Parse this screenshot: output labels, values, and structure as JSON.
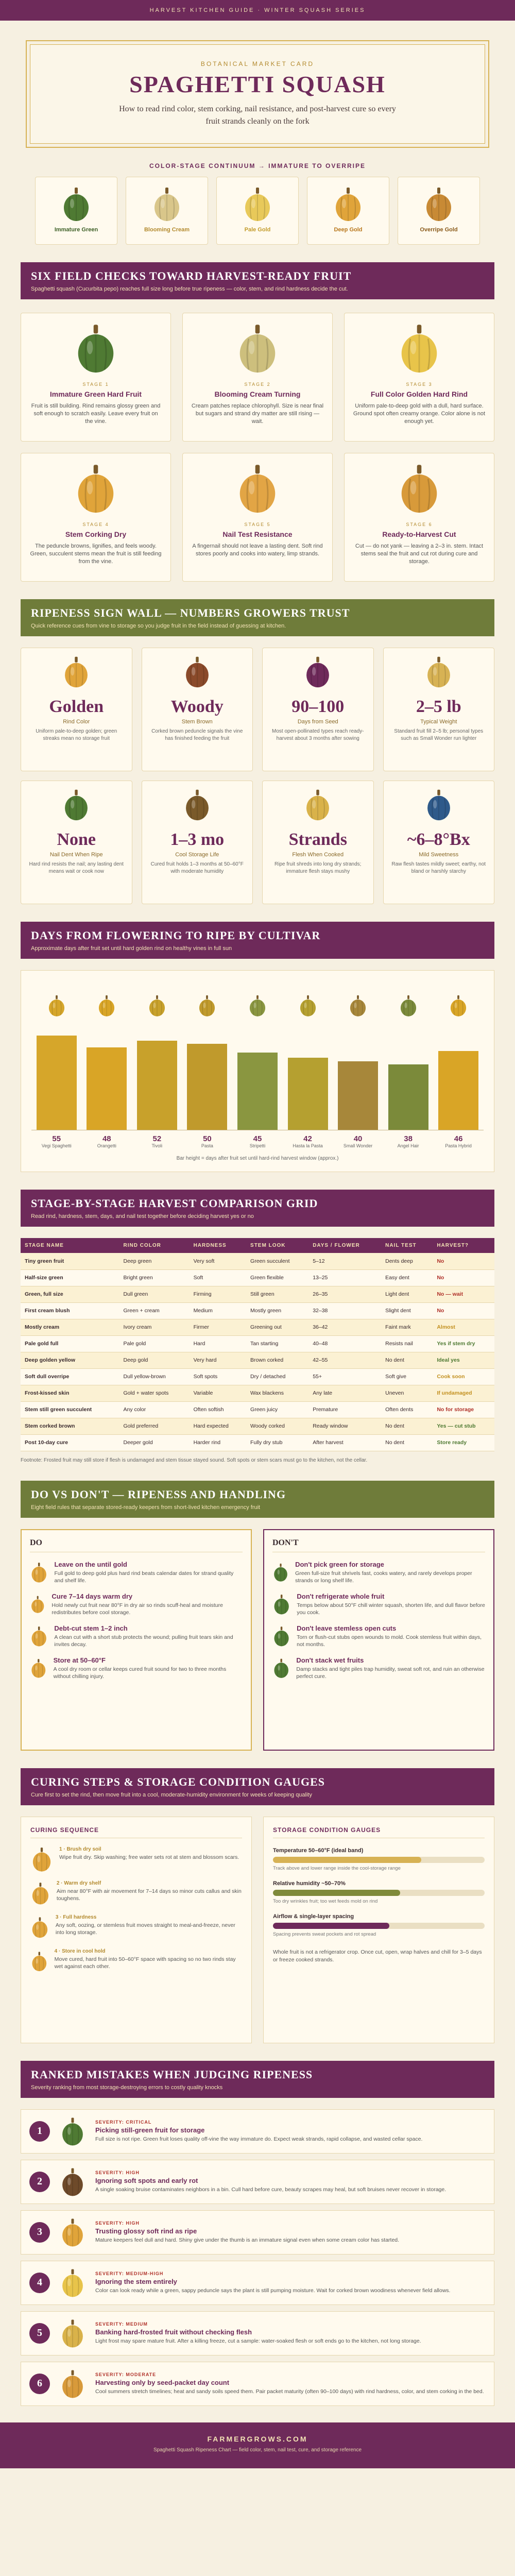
{
  "topbar": "HARVEST KITCHEN GUIDE · WINTER SQUASH SERIES",
  "hero": {
    "kicker": "BOTANICAL MARKET CARD",
    "title": "SPAGHETTI SQUASH",
    "subtitle": "How to read rind color, stem corking, nail resistance, and post-harvest cure so every fruit strands cleanly on the fork"
  },
  "continuum": {
    "title": "COLOR-STAGE CONTINUUM → IMMATURE TO OVERRIPE",
    "items": [
      {
        "label": "Immature Green",
        "color": "#4f7a33",
        "label_color": "#3d5f26"
      },
      {
        "label": "Blooming Cream",
        "color": "#d9c68a",
        "label_color": "#b38a2e"
      },
      {
        "label": "Pale Gold",
        "color": "#e8c95a",
        "label_color": "#c39b2a"
      },
      {
        "label": "Deep Gold",
        "color": "#e0a43a",
        "label_color": "#b8761b"
      },
      {
        "label": "Overripe Gold",
        "color": "#c88a35",
        "label_color": "#8a5a1a"
      }
    ]
  },
  "checks": {
    "title": "SIX FIELD CHECKS TOWARD HARVEST-READY FRUIT",
    "subtitle": "Spaghetti squash (Cucurbita pepo) reaches full size long before true ripeness — color, stem, and rind hardness decide the cut.",
    "items": [
      {
        "stage": "STAGE 1",
        "title": "Immature Green Hard Fruit",
        "desc": "Fruit is still building. Rind remains glossy green and soft enough to scratch easily. Leave every fruit on the vine.",
        "color": "#4f7a33"
      },
      {
        "stage": "STAGE 2",
        "title": "Blooming Cream Turning",
        "desc": "Cream patches replace chlorophyll. Size is near final but sugars and strand dry matter are still rising — wait.",
        "color": "#cdbf7d"
      },
      {
        "stage": "STAGE 3",
        "title": "Full Color Golden Hard Rind",
        "desc": "Uniform pale-to-deep gold with a dull, hard surface. Ground spot often creamy orange. Color alone is not enough yet.",
        "color": "#e8c44a"
      },
      {
        "stage": "STAGE 4",
        "title": "Stem Corking Dry",
        "desc": "The peduncle browns, lignifies, and feels woody. Green, succulent stems mean the fruit is still feeding from the vine.",
        "color": "#e0a43a"
      },
      {
        "stage": "STAGE 5",
        "title": "Nail Test Resistance",
        "desc": "A fingernail should not leave a lasting dent. Soft rind stores poorly and cooks into watery, limp strands.",
        "color": "#e2a545"
      },
      {
        "stage": "STAGE 6",
        "title": "Ready-to-Harvest Cut",
        "desc": "Cut — do not yank — leaving a 2–3 in. stem. Intact stems seal the fruit and cut rot during cure and storage.",
        "color": "#d89a3a"
      }
    ]
  },
  "signs": {
    "title": "RIPENESS SIGN WALL — NUMBERS GROWERS TRUST",
    "subtitle": "Quick reference cues from vine to storage so you judge fruit in the field instead of guessing at kitchen.",
    "items": [
      {
        "big": "Golden",
        "cap": "Rind Color",
        "desc": "Uniform pale-to-deep golden; green streaks mean no storage fruit"
      },
      {
        "big": "Woody",
        "cap": "Stem Brown",
        "desc": "Corked brown peduncle signals the vine has finished feeding the fruit"
      },
      {
        "big": "90–100",
        "cap": "Days from Seed",
        "desc": "Most open-pollinated types reach ready-harvest about 3 months after sowing"
      },
      {
        "big": "2–5 lb",
        "cap": "Typical Weight",
        "desc": "Standard fruit fill 2–5 lb; personal types such as Small Wonder run lighter"
      },
      {
        "big": "None",
        "cap": "Nail Dent When Ripe",
        "desc": "Hard rind resists the nail; any lasting dent means wait or cook now"
      },
      {
        "big": "1–3 mo",
        "cap": "Cool Storage Life",
        "desc": "Cured fruit holds 1–3 months at 50–60°F with moderate humidity"
      },
      {
        "big": "Strands",
        "cap": "Flesh When Cooked",
        "desc": "Ripe fruit shreds into long dry strands; immature flesh stays mushy"
      },
      {
        "big": "~6–8°Bx",
        "cap": "Mild Sweetness",
        "desc": "Raw flesh tastes mildly sweet; earthy, not bland or harshly starchy"
      }
    ]
  },
  "days": {
    "title": "DAYS FROM FLOWERING TO RIPE BY CULTIVAR",
    "subtitle": "Approximate days after fruit set until hard golden rind on healthy vines in full sun",
    "note": "Bar height = days after fruit set until hard-rind harvest window (approx.)"
  },
  "chart_data": {
    "type": "bar",
    "categories": [
      "Vegi Spaghetti",
      "Orangetti",
      "Tivoli",
      "Pasta",
      "Stripetti",
      "Hasta la Pasta",
      "Small Wonder",
      "Angel Hair",
      "Pasta Hybrid"
    ],
    "values": [
      55,
      48,
      52,
      50,
      45,
      42,
      40,
      38,
      46
    ],
    "ylabel": "",
    "colors": [
      "#d6a62a",
      "#d9a526",
      "#c8a12b",
      "#c09a2c",
      "#8a9640",
      "#b5a030",
      "#a7873a",
      "#7b8a3a",
      "#d9a526"
    ],
    "ylim": [
      0,
      60
    ]
  },
  "stage_table": {
    "title": "STAGE-BY-STAGE HARVEST COMPARISON GRID",
    "subtitle": "Read rind, hardness, stem, days, and nail test together before deciding harvest yes or no",
    "headers": [
      "STAGE NAME",
      "RIND COLOR",
      "HARDNESS",
      "STEM LOOK",
      "DAYS / FLOWER",
      "NAIL TEST",
      "HARVEST?"
    ],
    "rows": [
      [
        "Tiny green fruit",
        "Deep green",
        "Very soft",
        "Green succulent",
        "5–12",
        "Dents deep",
        "No"
      ],
      [
        "Half-size green",
        "Bright green",
        "Soft",
        "Green flexible",
        "13–25",
        "Easy dent",
        "No"
      ],
      [
        "Green, full size",
        "Dull green",
        "Firming",
        "Still green",
        "26–35",
        "Light dent",
        "No — wait"
      ],
      [
        "First cream blush",
        "Green + cream",
        "Medium",
        "Mostly green",
        "32–38",
        "Slight dent",
        "No"
      ],
      [
        "Mostly cream",
        "Ivory cream",
        "Firmer",
        "Greening out",
        "36–42",
        "Faint mark",
        "Almost"
      ],
      [
        "Pale gold full",
        "Pale gold",
        "Hard",
        "Tan starting",
        "40–48",
        "Resists nail",
        "Yes if stem dry"
      ],
      [
        "Deep golden yellow",
        "Deep gold",
        "Very hard",
        "Brown corked",
        "42–55",
        "No dent",
        "Ideal yes"
      ],
      [
        "Soft dull overripe",
        "Dull yellow-brown",
        "Soft spots",
        "Dry / detached",
        "55+",
        "Soft give",
        "Cook soon"
      ],
      [
        "Frost-kissed skin",
        "Gold + water spots",
        "Variable",
        "Wax blackens",
        "Any late",
        "Uneven",
        "If undamaged"
      ],
      [
        "Stem still green succulent",
        "Any color",
        "Often softish",
        "Green juicy",
        "Premature",
        "Often dents",
        "No for storage"
      ],
      [
        "Stem corked brown",
        "Gold preferred",
        "Hard expected",
        "Woody corked",
        "Ready window",
        "No dent",
        "Yes — cut stub"
      ],
      [
        "Post 10-day cure",
        "Deeper gold",
        "Harder rind",
        "Fully dry stub",
        "After harvest",
        "No dent",
        "Store ready"
      ]
    ],
    "note": "Footnote: Frosted fruit may still store if flesh is undamaged and stem tissue stayed sound. Soft spots or stem scars must go to the kitchen, not the cellar."
  },
  "dodont": {
    "title": "DO VS DON'T — RIPENESS AND HANDLING",
    "subtitle": "Eight field rules that separate stored-ready keepers from short-lived kitchen emergency fruit",
    "do_title": "DO",
    "dont_title": "DON'T",
    "do_items": [
      {
        "t": "Leave on the until gold",
        "d": "Full gold to deep gold plus hard rind beats calendar dates for strand quality and shelf life."
      },
      {
        "t": "Cure 7–14 days warm dry",
        "d": "Hold newly cut fruit near 80°F in dry air so rinds scuff-heal and moisture redistributes before cool storage."
      },
      {
        "t": "Debt-cut stem 1–2 inch",
        "d": "A clean cut with a short stub protects the wound; pulling fruit tears skin and invites decay."
      },
      {
        "t": "Store at 50–60°F",
        "d": "A cool dry room or cellar keeps cured fruit sound for two to three months without chilling injury."
      }
    ],
    "dont_items": [
      {
        "t": "Don't pick green for storage",
        "d": "Green full-size fruit shrivels fast, cooks watery, and rarely develops proper strands or long shelf life."
      },
      {
        "t": "Don't refrigerate whole fruit",
        "d": "Temps below about 50°F chill winter squash, shorten life, and dull flavor before you cook."
      },
      {
        "t": "Don't leave stemless open cuts",
        "d": "Torn or flush-cut stubs open wounds to mold. Cook stemless fruit within days, not months."
      },
      {
        "t": "Don't stack wet fruits",
        "d": "Damp stacks and tight piles trap humidity, sweat soft rot, and ruin an otherwise perfect cure."
      }
    ]
  },
  "curing": {
    "title": "CURING STEPS & STORAGE CONDITION GAUGES",
    "subtitle": "Cure first to set the rind, then move fruit into a cool, moderate-humidity environment for weeks of keeping quality",
    "seq_title": "CURING SEQUENCE",
    "steps": [
      {
        "n": "1 · Brush dry soil",
        "d": "Wipe fruit dry. Skip washing; free water sets rot at stem and blossom scars."
      },
      {
        "n": "2 · Warm dry shelf",
        "d": "Aim near 80°F with air movement for 7–14 days so minor cuts callus and skin toughens."
      },
      {
        "n": "3 · Full hardness",
        "d": "Any soft, oozing, or stemless fruit moves straight to meal-and-freeze, never into long storage."
      },
      {
        "n": "4 · Store in cool hold",
        "d": "Move cured, hard fruit into 50–60°F space with spacing so no two rinds stay wet against each other."
      }
    ],
    "gauge_title": "STORAGE CONDITION GAUGES",
    "gauges": [
      {
        "label": "Temperature 50–60°F (ideal band)",
        "pct": 70,
        "color": "#d7b254",
        "desc": "Track above and lower range inside the cool-storage range"
      },
      {
        "label": "Relative humidity ~50–70%",
        "pct": 60,
        "color": "#7f8a3a",
        "desc": "Too dry wrinkles fruit; too wet feeds mold on rind"
      },
      {
        "label": "Airflow & single-layer spacing",
        "pct": 55,
        "color": "#6e2a5a",
        "desc": "Spacing prevents sweat pockets and rot spread"
      }
    ],
    "gauge_note": "Whole fruit is not a refrigerator crop. Once cut, open, wrap halves and chill for 3–5 days or freeze cooked strands."
  },
  "mistakes": {
    "title": "RANKED MISTAKES WHEN JUDGING RIPENESS",
    "subtitle": "Severity ranking from most storage-destroying errors to costly quality knocks",
    "items": [
      {
        "num": "1",
        "sev": "SEVERITY: CRITICAL",
        "t": "Picking still-green fruit for storage",
        "d": "Full size is not ripe. Green fruit loses quality off-vine the way immature do. Expect weak strands, rapid collapse, and wasted cellar space."
      },
      {
        "num": "2",
        "sev": "SEVERITY: HIGH",
        "t": "Ignoring soft spots and early rot",
        "d": "A single soaking bruise contaminates neighbors in a bin. Cull hard before cure, beauty scrapes may heal, but soft bruises never recover in storage."
      },
      {
        "num": "3",
        "sev": "SEVERITY: HIGH",
        "t": "Trusting glossy soft rind as ripe",
        "d": "Mature keepers feel dull and hard. Shiny give under the thumb is an immature signal even when some cream color has started."
      },
      {
        "num": "4",
        "sev": "SEVERITY: MEDIUM-HIGH",
        "t": "Ignoring the stem entirely",
        "d": "Color can look ready while a green, sappy peduncle says the plant is still pumping moisture. Wait for corked brown woodiness whenever field allows."
      },
      {
        "num": "5",
        "sev": "SEVERITY: MEDIUM",
        "t": "Banking hard-frosted fruit without checking flesh",
        "d": "Light frost may spare mature fruit. After a killing freeze, cut a sample: water-soaked flesh or soft ends go to the kitchen, not long storage."
      },
      {
        "num": "6",
        "sev": "SEVERITY: MODERATE",
        "t": "Harvesting only by seed-packet day count",
        "d": "Cool summers stretch timelines; heat and sandy soils speed them. Pair packet maturity (often 90–100 days) with rind hardness, color, and stem corking in the bed."
      }
    ]
  },
  "footer": {
    "brand": "FARMERGROWS.COM",
    "sub": "Spaghetti Squash Ripeness Chart — field color, stem, nail test, cure, and storage reference"
  }
}
